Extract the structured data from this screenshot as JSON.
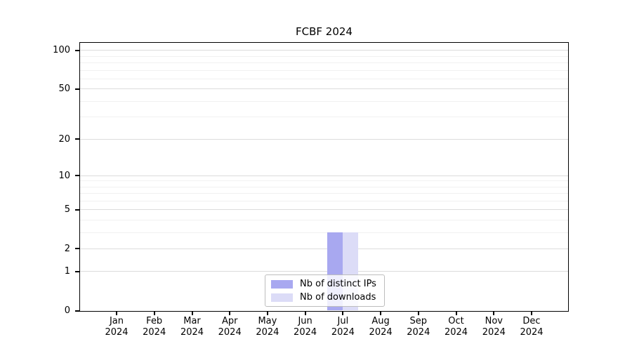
{
  "chart_data": {
    "type": "bar",
    "title": "FCBF 2024",
    "scale": "log1p",
    "grid": true,
    "background": "#ffffff",
    "ylim": [
      0,
      114
    ],
    "y_ticks": [
      0,
      1,
      2,
      5,
      10,
      20,
      50,
      100
    ],
    "y_minor_gridlines": [
      3,
      4,
      6,
      7,
      8,
      9,
      30,
      40,
      60,
      70,
      80,
      90
    ],
    "categories": [
      "Jan 2024",
      "Feb 2024",
      "Mar 2024",
      "Apr 2024",
      "May 2024",
      "Jun 2024",
      "Jul 2024",
      "Aug 2024",
      "Sep 2024",
      "Oct 2024",
      "Nov 2024",
      "Dec 2024"
    ],
    "x_tick_labels": [
      [
        "Jan",
        "2024"
      ],
      [
        "Feb",
        "2024"
      ],
      [
        "Mar",
        "2024"
      ],
      [
        "Apr",
        "2024"
      ],
      [
        "May",
        "2024"
      ],
      [
        "Jun",
        "2024"
      ],
      [
        "Jul",
        "2024"
      ],
      [
        "Aug",
        "2024"
      ],
      [
        "Sep",
        "2024"
      ],
      [
        "Oct",
        "2024"
      ],
      [
        "Nov",
        "2024"
      ],
      [
        "Dec",
        "2024"
      ]
    ],
    "series": [
      {
        "name": "Nb of distinct IPs",
        "color": "#a8a8f0",
        "values": [
          0,
          0,
          0,
          0,
          0,
          0,
          3,
          0,
          0,
          0,
          0,
          0
        ]
      },
      {
        "name": "Nb of downloads",
        "color": "#dcdcf7",
        "values": [
          0,
          0,
          0,
          0,
          0,
          0,
          3,
          0,
          0,
          0,
          0,
          0
        ]
      }
    ],
    "legend": {
      "position": "inside-bottom-center",
      "labels": [
        "Nb of distinct IPs",
        "Nb of downloads"
      ]
    }
  }
}
